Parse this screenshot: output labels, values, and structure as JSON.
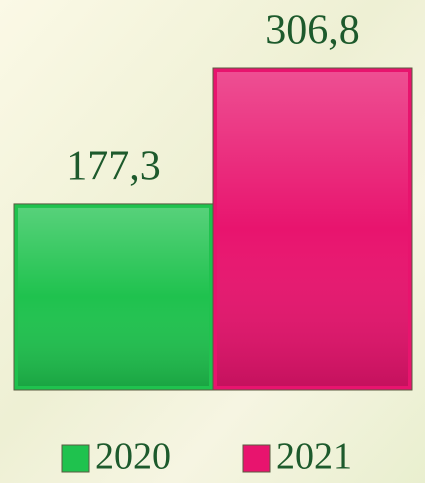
{
  "chart_data": {
    "type": "bar",
    "series": [
      {
        "name": "2020",
        "color": "#1fc24e",
        "values": [
          177.3
        ],
        "value_labels": [
          "177,3"
        ]
      },
      {
        "name": "2021",
        "color": "#e8146e",
        "values": [
          306.8
        ],
        "value_labels": [
          "306,8"
        ]
      }
    ]
  }
}
